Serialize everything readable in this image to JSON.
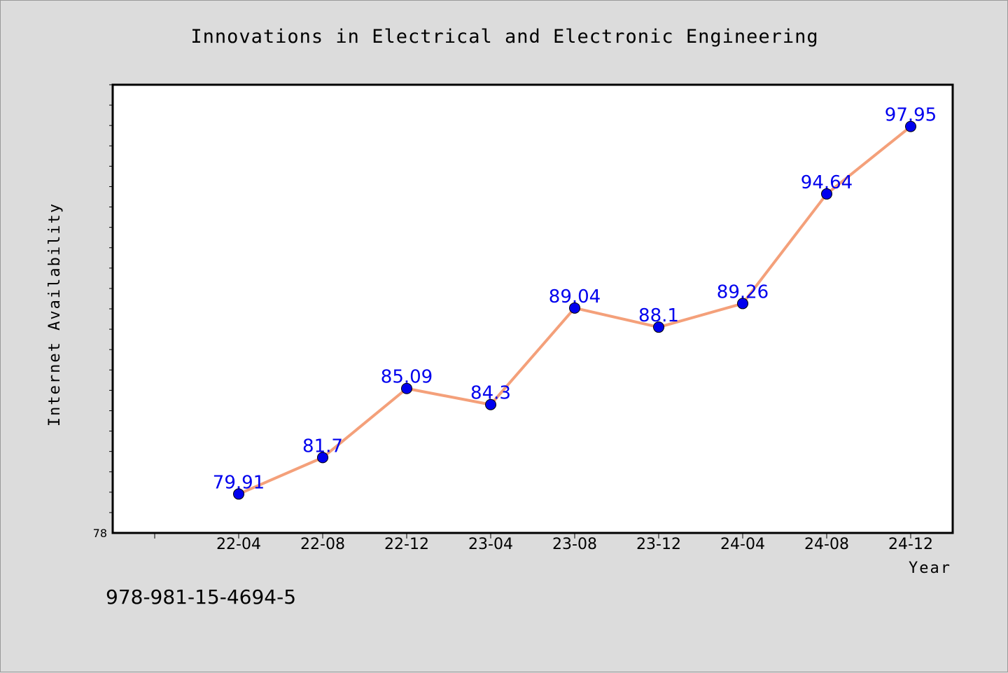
{
  "page": {
    "background": "#dcdcdc",
    "footer_text": "978-981-15-4694-5"
  },
  "chart_data": {
    "type": "line",
    "title": "Innovations in Electrical and Electronic Engineering",
    "xlabel": "Year",
    "ylabel": "Internet Availability",
    "categories": [
      "22-04",
      "22-08",
      "22-12",
      "23-04",
      "23-08",
      "23-12",
      "24-04",
      "24-08",
      "24-12"
    ],
    "series": [
      {
        "values": [
          79.91,
          81.7,
          85.09,
          84.3,
          89.04,
          88.1,
          89.26,
          94.64,
          97.95
        ],
        "color": "#f4a07a",
        "marker_color": "#0000ee"
      }
    ],
    "data_labels": [
      "79.91",
      "81.7",
      "85.09",
      "84.3",
      "89.04",
      "88.1",
      "89.26",
      "94.64",
      "97.95"
    ],
    "data_label_color": "#0000ee",
    "ylim": [
      78,
      100
    ],
    "y_tick_labels": [
      "78"
    ],
    "grid": false,
    "legend": "none"
  }
}
